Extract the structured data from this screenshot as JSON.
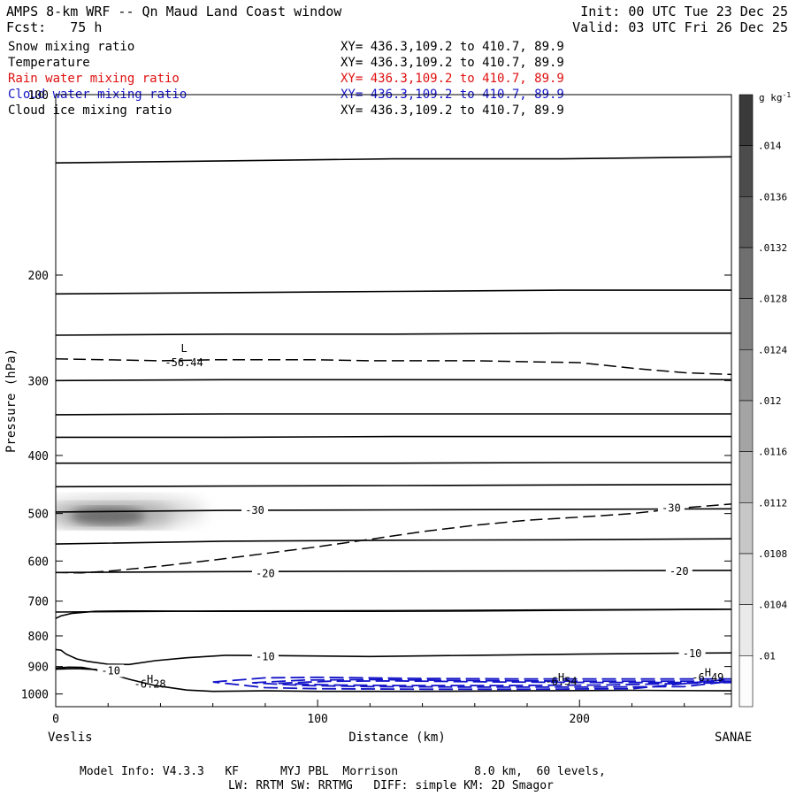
{
  "header": {
    "title": "AMPS 8-km WRF -- Qn Maud Land Coast window",
    "init": "Init: 00 UTC Tue 23 Dec 25",
    "fcst": "Fcst:   75 h",
    "valid": "Valid: 03 UTC Fri 26 Dec 25"
  },
  "fields": [
    {
      "name": "Snow mixing ratio",
      "xy": "XY= 436.3,109.2 to 410.7, 89.9",
      "color": "#000000"
    },
    {
      "name": "Temperature",
      "xy": "XY= 436.3,109.2 to 410.7, 89.9",
      "color": "#000000"
    },
    {
      "name": "Rain water mixing ratio",
      "xy": "XY= 436.3,109.2 to 410.7, 89.9",
      "color": "#e01010"
    },
    {
      "name": "Cloud water mixing ratio",
      "xy": "XY= 436.3,109.2 to 410.7, 89.9",
      "color": "#1414c8"
    },
    {
      "name": "Cloud ice mixing ratio",
      "xy": "XY= 436.3,109.2 to 410.7, 89.9",
      "color": "#000000"
    }
  ],
  "footer": {
    "line1": "Model Info: V4.3.3   KF      MYJ PBL  Morrison           8.0 km,  60 levels,",
    "line2": "LW: RRTM SW: RRTMG   DIFF: simple KM: 2D Smagor"
  },
  "chart_data": {
    "type": "heatmap",
    "xlabel": "Distance (km)",
    "ylabel": "Pressure (hPa)",
    "xlim": [
      0,
      258
    ],
    "ylim": [
      1050,
      100
    ],
    "y_scale": "log",
    "x_ticks": [
      0,
      100,
      200
    ],
    "y_ticks": [
      100,
      200,
      300,
      400,
      500,
      600,
      700,
      800,
      900,
      1000
    ],
    "x_end_labels": {
      "left": "Veslis",
      "right": "SANAE"
    },
    "colorbar": {
      "title": "g kg",
      "title_sup": "-1",
      "tick_labels": [
        ".01",
        ".0104",
        ".0108",
        ".0112",
        ".0116",
        ".012",
        ".0124",
        ".0128",
        ".0132",
        ".0136",
        ".014"
      ],
      "n_bins": 12
    },
    "snow_shading": {
      "x_center_km": 20,
      "p_center_hPa": 503,
      "max_g_per_kg": 0.0138
    },
    "temperature_isotherms": [
      {
        "p": [
          130,
          129,
          128,
          128,
          127
        ]
      },
      {
        "p": [
          215,
          214,
          213,
          212,
          212
        ]
      },
      {
        "p": [
          252,
          251,
          251,
          250,
          250
        ]
      },
      {
        "p": [
          300,
          299,
          299,
          299,
          299
        ]
      },
      {
        "p": [
          342,
          341,
          341,
          341,
          341
        ]
      },
      {
        "p": [
          373,
          373,
          372,
          372,
          372
        ]
      },
      {
        "p": [
          412,
          412,
          412,
          411,
          411
        ]
      },
      {
        "p": [
          451,
          450,
          449,
          448,
          447
        ]
      },
      {
        "p": [
          497,
          494,
          493,
          492,
          491
        ]
      },
      {
        "p": [
          562,
          556,
          554,
          553,
          551
        ]
      },
      {
        "p": [
          627,
          625,
          624,
          623,
          622
        ]
      },
      {
        "p": [
          730,
          727,
          726,
          724,
          722
        ]
      }
    ],
    "temperature_labels": [
      {
        "text": "-30",
        "x": 76,
        "p": 494
      },
      {
        "text": "-30",
        "x": 235,
        "p": 490
      },
      {
        "text": "-20",
        "x": 80,
        "p": 630
      },
      {
        "text": "-20",
        "x": 238,
        "p": 624
      },
      {
        "text": "-10",
        "x": 80,
        "p": 867
      },
      {
        "text": "-10",
        "x": 243,
        "p": 856
      },
      {
        "text": "-10",
        "x": 21,
        "p": 915
      }
    ],
    "lower_isotherms": [
      {
        "x": [
          0,
          2,
          6,
          15,
          25,
          35,
          55,
          80,
          120,
          160,
          200,
          240,
          258
        ],
        "p": [
          748,
          741,
          734,
          728,
          727,
          727,
          728,
          728,
          728,
          727,
          725,
          723,
          722
        ]
      },
      {
        "x": [
          0,
          2,
          4,
          8,
          12,
          20,
          28,
          38,
          50,
          65,
          85,
          120,
          160,
          200,
          240,
          258
        ],
        "p": [
          843,
          845,
          858,
          874,
          882,
          892,
          893,
          880,
          870,
          862,
          863,
          866,
          862,
          858,
          855,
          854
        ]
      },
      {
        "x": [
          0,
          5,
          10,
          15,
          20,
          28,
          38,
          50,
          60,
          80,
          100,
          140,
          180,
          220,
          258
        ],
        "p": [
          905,
          902,
          903,
          911,
          923,
          945,
          968,
          985,
          990,
          988,
          990,
          990,
          988,
          986,
          988
        ]
      },
      {
        "x": [
          0,
          8,
          15,
          22
        ],
        "p": [
          909,
          907,
          910,
          918
        ]
      }
    ],
    "dashed_isotherms": [
      {
        "x": [
          0,
          20,
          40,
          60,
          80,
          100,
          120,
          140,
          160,
          180,
          200,
          220,
          240,
          258
        ],
        "p": [
          276,
          277,
          278,
          277,
          277,
          277,
          278,
          278,
          278,
          279,
          280,
          286,
          291,
          293
        ]
      },
      {
        "x": [
          0,
          10,
          20,
          40,
          60,
          80,
          100,
          120,
          140,
          160,
          180,
          200,
          220,
          240,
          258
        ],
        "p": [
          627,
          628,
          624,
          612,
          598,
          583,
          568,
          552,
          536,
          523,
          513,
          507,
          500,
          489,
          482
        ]
      }
    ],
    "extrema": [
      {
        "kind": "L",
        "value": "-56.44",
        "x": 49,
        "p": 265,
        "value_p": 280
      },
      {
        "kind": "H",
        "value": "-6.28",
        "x": 36,
        "p": 945,
        "value_p": 963
      },
      {
        "kind": "H",
        "value": "-6.54",
        "x": 193,
        "p": 938,
        "value_p": 953
      },
      {
        "kind": "H",
        "value": "-6.49",
        "x": 249,
        "p": 922,
        "value_p": 938
      }
    ],
    "cloud_water_contours": [
      {
        "x": [
          60,
          80,
          100,
          140,
          180,
          220,
          258,
          220,
          180,
          140,
          100,
          80,
          60
        ],
        "p": [
          955,
          940,
          938,
          942,
          944,
          944,
          944,
          980,
          982,
          982,
          980,
          976,
          955
        ]
      },
      {
        "x": [
          75,
          95,
          120,
          160,
          200,
          240,
          258,
          240,
          200,
          160,
          120,
          95,
          75
        ],
        "p": [
          958,
          948,
          946,
          950,
          952,
          952,
          952,
          972,
          974,
          974,
          972,
          968,
          958
        ]
      },
      {
        "x": [
          85,
          105,
          130,
          170,
          210,
          258,
          210,
          170,
          130,
          105,
          85
        ],
        "p": [
          960,
          952,
          951,
          955,
          957,
          957,
          966,
          968,
          968,
          966,
          960
        ]
      }
    ]
  }
}
